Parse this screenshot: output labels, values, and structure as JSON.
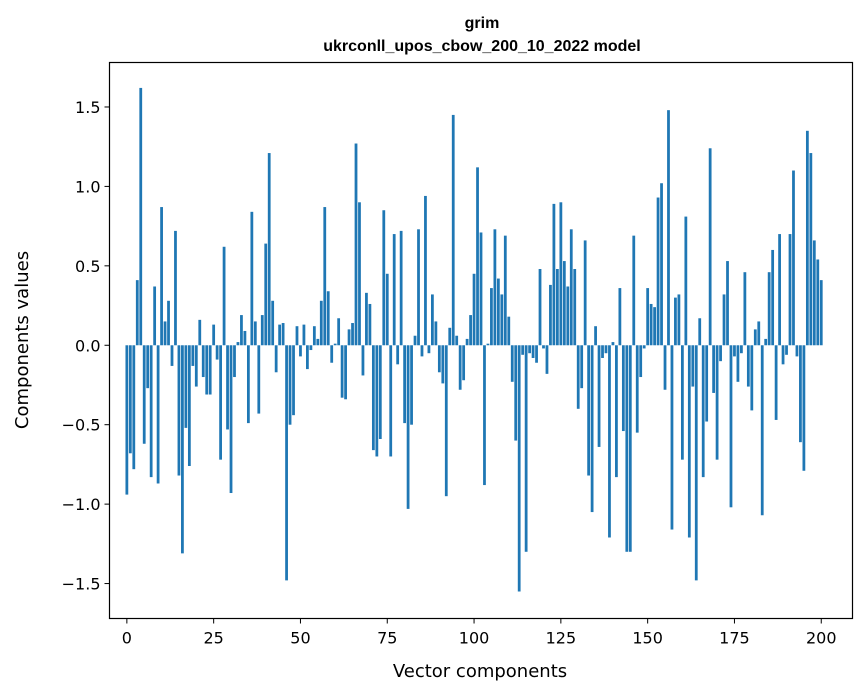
{
  "chart_data": {
    "type": "bar",
    "title": "grim",
    "subtitle": "ukrconll_upos_cbow_200_10_2022 model",
    "xlabel": "Vector components",
    "ylabel": "Components values",
    "xlim": [
      -5,
      209
    ],
    "ylim": [
      -1.72,
      1.78
    ],
    "xticks": [
      0,
      25,
      50,
      75,
      100,
      125,
      150,
      175,
      200
    ],
    "xtick_labels": [
      "0",
      "25",
      "50",
      "75",
      "100",
      "125",
      "150",
      "175",
      "200"
    ],
    "yticks": [
      -1.5,
      -1.0,
      -0.5,
      0.0,
      0.5,
      1.0,
      1.5
    ],
    "ytick_labels": [
      "−1.5",
      "−1.0",
      "−0.5",
      "0.0",
      "0.5",
      "1.0",
      "1.5"
    ],
    "bar_color": "#1f77b4",
    "grid": false,
    "legend": "none",
    "values": [
      -0.94,
      -0.68,
      -0.78,
      0.41,
      1.62,
      -0.62,
      -0.27,
      -0.83,
      0.37,
      -0.87,
      0.87,
      0.15,
      0.28,
      -0.13,
      0.72,
      -0.82,
      -1.31,
      -0.52,
      -0.76,
      -0.13,
      -0.26,
      0.16,
      -0.2,
      -0.31,
      -0.31,
      0.13,
      -0.09,
      -0.72,
      0.62,
      -0.53,
      -0.93,
      -0.2,
      0.02,
      0.19,
      0.09,
      -0.49,
      0.84,
      0.15,
      -0.43,
      0.19,
      0.64,
      1.21,
      0.28,
      -0.17,
      0.13,
      0.14,
      -1.48,
      -0.5,
      -0.44,
      0.12,
      -0.07,
      0.13,
      -0.15,
      -0.03,
      0.12,
      0.04,
      0.28,
      0.87,
      0.34,
      -0.11,
      0.01,
      0.17,
      -0.33,
      -0.34,
      0.1,
      0.14,
      1.27,
      0.9,
      -0.19,
      0.33,
      0.26,
      -0.66,
      -0.7,
      -0.59,
      0.85,
      0.45,
      -0.7,
      0.7,
      -0.12,
      0.72,
      -0.49,
      -1.03,
      -0.5,
      0.06,
      0.73,
      -0.07,
      0.94,
      -0.05,
      0.32,
      0.15,
      -0.17,
      -0.24,
      -0.95,
      0.11,
      1.45,
      0.06,
      -0.28,
      -0.22,
      0.04,
      0.19,
      0.45,
      1.12,
      0.71,
      -0.88,
      0.01,
      0.36,
      0.73,
      0.42,
      0.32,
      0.69,
      0.18,
      -0.23,
      -0.6,
      -1.55,
      -0.06,
      -1.3,
      -0.05,
      -0.08,
      -0.11,
      0.48,
      -0.02,
      -0.18,
      0.38,
      0.89,
      0.48,
      0.9,
      0.53,
      0.37,
      0.73,
      0.48,
      -0.4,
      -0.27,
      0.66,
      -0.82,
      -1.05,
      0.12,
      -0.64,
      -0.08,
      -0.05,
      -1.21,
      0.02,
      -0.83,
      0.36,
      -0.54,
      -1.3,
      -1.3,
      0.69,
      -0.55,
      -0.2,
      -0.02,
      0.36,
      0.26,
      0.24,
      0.93,
      1.02,
      -0.28,
      1.48,
      -1.16,
      0.3,
      0.32,
      -0.72,
      0.81,
      -1.21,
      -0.26,
      -1.48,
      0.17,
      -0.83,
      -0.48,
      1.24,
      -0.3,
      -0.72,
      -0.1,
      0.32,
      0.53,
      -1.02,
      -0.07,
      -0.23,
      -0.05,
      0.46,
      -0.26,
      -0.41,
      0.1,
      0.15,
      -1.07,
      0.04,
      0.46,
      0.6,
      -0.47,
      0.7,
      -0.12,
      -0.06,
      0.7,
      1.1,
      -0.07,
      -0.61,
      -0.79,
      1.35,
      1.21,
      0.66,
      0.54,
      0.41
    ]
  }
}
